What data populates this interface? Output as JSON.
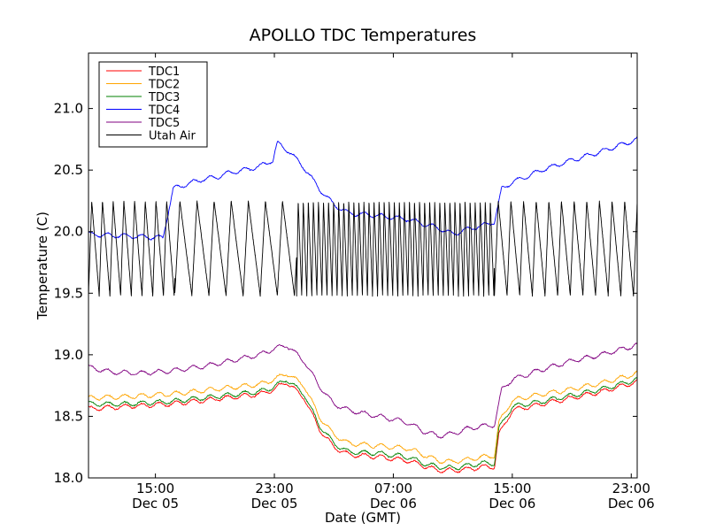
{
  "chart_data": {
    "type": "line",
    "title": "APOLLO TDC Temperatures",
    "xlabel": "Date (GMT)",
    "ylabel": "Temperature (C)",
    "xlim": [
      10.5,
      47.4
    ],
    "ylim": [
      18.0,
      21.45
    ],
    "x_unit": "hours since Dec 05 00:00 GMT",
    "x_ticks": [
      {
        "value": 15,
        "time": "15:00",
        "date": "Dec 05"
      },
      {
        "value": 23,
        "time": "23:00",
        "date": "Dec 05"
      },
      {
        "value": 31,
        "time": "07:00",
        "date": "Dec 06"
      },
      {
        "value": 39,
        "time": "15:00",
        "date": "Dec 06"
      },
      {
        "value": 47,
        "time": "23:00",
        "date": "Dec 06"
      }
    ],
    "y_ticks": [
      "18.0",
      "18.5",
      "19.0",
      "19.5",
      "20.0",
      "20.5",
      "21.0"
    ],
    "y_tick_values": [
      18.0,
      18.5,
      19.0,
      19.5,
      20.0,
      20.5,
      21.0
    ],
    "legend_position": "top-left",
    "series": [
      {
        "name": "TDC1",
        "color": "#ff0000",
        "x": [
          10.5,
          13,
          16,
          19,
          22,
          23,
          23.8,
          25,
          26,
          27,
          28,
          30,
          32,
          33,
          34,
          35,
          36,
          37,
          37.8,
          38.1,
          39,
          41,
          43,
          45,
          47.4
        ],
        "y": [
          18.56,
          18.58,
          18.6,
          18.64,
          18.68,
          18.72,
          18.78,
          18.65,
          18.4,
          18.25,
          18.19,
          18.17,
          18.14,
          18.1,
          18.06,
          18.06,
          18.07,
          18.09,
          18.09,
          18.35,
          18.55,
          18.6,
          18.65,
          18.7,
          18.78
        ]
      },
      {
        "name": "TDC2",
        "color": "#ffa500",
        "x": [
          10.5,
          13,
          16,
          19,
          22,
          23,
          23.8,
          25,
          26,
          27,
          28,
          30,
          32,
          33,
          34,
          35,
          36,
          37,
          37.8,
          38.1,
          39,
          41,
          43,
          45,
          47.4
        ],
        "y": [
          18.65,
          18.66,
          18.68,
          18.72,
          18.76,
          18.8,
          18.85,
          18.75,
          18.5,
          18.35,
          18.28,
          18.26,
          18.24,
          18.19,
          18.14,
          18.13,
          18.15,
          18.17,
          18.18,
          18.45,
          18.63,
          18.68,
          18.72,
          18.77,
          18.85
        ]
      },
      {
        "name": "TDC3",
        "color": "#008000",
        "x": [
          10.5,
          13,
          16,
          19,
          22,
          23,
          23.8,
          25,
          26,
          27,
          28,
          30,
          32,
          33,
          34,
          35,
          36,
          37,
          37.8,
          38.1,
          39,
          41,
          43,
          45,
          47.4
        ],
        "y": [
          18.6,
          18.6,
          18.62,
          18.66,
          18.7,
          18.74,
          18.8,
          18.68,
          18.43,
          18.28,
          18.21,
          18.2,
          18.17,
          18.12,
          18.09,
          18.08,
          18.1,
          18.12,
          18.12,
          18.4,
          18.58,
          18.62,
          18.67,
          18.72,
          18.8
        ]
      },
      {
        "name": "TDC4",
        "color": "#0000ff",
        "x": [
          10.5,
          12,
          14,
          15.5,
          16.2,
          17,
          18,
          19,
          20,
          21,
          22,
          22.9,
          23.2,
          24,
          25,
          26,
          27,
          28,
          30,
          32,
          34,
          35,
          36,
          37,
          37.8,
          38.3,
          39,
          41,
          43,
          45,
          47.4
        ],
        "y": [
          19.98,
          19.97,
          19.96,
          19.95,
          20.35,
          20.38,
          20.42,
          20.44,
          20.48,
          20.5,
          20.53,
          20.58,
          20.72,
          20.65,
          20.52,
          20.35,
          20.22,
          20.15,
          20.13,
          20.1,
          20.03,
          19.98,
          20.02,
          20.05,
          20.08,
          20.35,
          20.4,
          20.5,
          20.58,
          20.65,
          20.75
        ]
      },
      {
        "name": "TDC5",
        "color": "#800080",
        "x": [
          10.5,
          12,
          14,
          16,
          18,
          20,
          22,
          23,
          23.8,
          25,
          26,
          27,
          28,
          30,
          32,
          33,
          34,
          35,
          36,
          37,
          37.8,
          38.3,
          39,
          41,
          43,
          45,
          47.4
        ],
        "y": [
          18.9,
          18.86,
          18.85,
          18.87,
          18.9,
          18.95,
          19.0,
          19.05,
          19.08,
          18.95,
          18.75,
          18.6,
          18.55,
          18.5,
          18.45,
          18.38,
          18.34,
          18.36,
          18.4,
          18.42,
          18.43,
          18.72,
          18.8,
          18.88,
          18.95,
          19.0,
          19.08
        ]
      },
      {
        "name": "Utah Air",
        "color": "#000000",
        "oscillation": true,
        "low": 19.48,
        "high": 20.25,
        "phases": [
          {
            "start": 10.5,
            "end": 16.3,
            "period": 0.72
          },
          {
            "start": 16.3,
            "end": 24.5,
            "period": 1.15
          },
          {
            "start": 24.5,
            "end": 37.8,
            "period": 0.34
          },
          {
            "start": 37.8,
            "end": 47.4,
            "period": 0.85
          }
        ]
      }
    ]
  }
}
